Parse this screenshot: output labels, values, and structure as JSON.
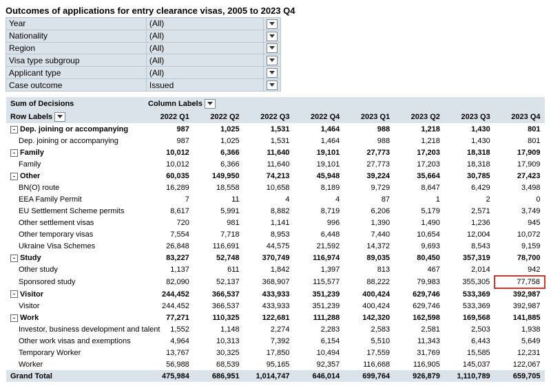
{
  "title": "Outcomes of applications for entry clearance visas, 2005 to 2023 Q4",
  "filters": [
    {
      "label": "Year",
      "value": "(All)"
    },
    {
      "label": "Nationality",
      "value": "(All)"
    },
    {
      "label": "Region",
      "value": "(All)"
    },
    {
      "label": "Visa type subgroup",
      "value": "(All)"
    },
    {
      "label": "Applicant type",
      "value": "(All)"
    },
    {
      "label": "Case outcome",
      "value": "Issued"
    }
  ],
  "sumLabel": "Sum of Decisions",
  "colLabel": "Column Labels",
  "rowLabel": "Row Labels",
  "columns": [
    "2022 Q1",
    "2022 Q2",
    "2022 Q3",
    "2022 Q4",
    "2023 Q1",
    "2023 Q2",
    "2023 Q3",
    "2023 Q4"
  ],
  "rows": [
    {
      "label": "Dep. joining or accompanying",
      "bold": true,
      "expand": true,
      "v": [
        "987",
        "1,025",
        "1,531",
        "1,464",
        "988",
        "1,218",
        "1,430",
        "801"
      ]
    },
    {
      "label": "Dep. joining or accompanying",
      "indent": true,
      "v": [
        "987",
        "1,025",
        "1,531",
        "1,464",
        "988",
        "1,218",
        "1,430",
        "801"
      ]
    },
    {
      "label": "Family",
      "bold": true,
      "expand": true,
      "v": [
        "10,012",
        "6,366",
        "11,640",
        "19,101",
        "27,773",
        "17,203",
        "18,318",
        "17,909"
      ]
    },
    {
      "label": "Family",
      "indent": true,
      "v": [
        "10,012",
        "6,366",
        "11,640",
        "19,101",
        "27,773",
        "17,203",
        "18,318",
        "17,909"
      ]
    },
    {
      "label": "Other",
      "bold": true,
      "expand": true,
      "v": [
        "60,035",
        "149,950",
        "74,213",
        "45,948",
        "39,224",
        "35,664",
        "30,785",
        "27,423"
      ]
    },
    {
      "label": "BN(O) route",
      "indent": true,
      "v": [
        "16,289",
        "18,558",
        "10,658",
        "8,189",
        "9,729",
        "8,647",
        "6,429",
        "3,498"
      ]
    },
    {
      "label": "EEA Family Permit",
      "indent": true,
      "v": [
        "7",
        "11",
        "4",
        "4",
        "87",
        "1",
        "2",
        "0"
      ]
    },
    {
      "label": "EU Settlement Scheme permits",
      "indent": true,
      "v": [
        "8,617",
        "5,991",
        "8,882",
        "8,719",
        "6,206",
        "5,179",
        "2,571",
        "3,749"
      ]
    },
    {
      "label": "Other settlement visas",
      "indent": true,
      "v": [
        "720",
        "981",
        "1,141",
        "996",
        "1,390",
        "1,490",
        "1,236",
        "945"
      ]
    },
    {
      "label": "Other temporary visas",
      "indent": true,
      "v": [
        "7,554",
        "7,718",
        "8,953",
        "6,448",
        "7,440",
        "10,654",
        "12,004",
        "10,072"
      ]
    },
    {
      "label": "Ukraine Visa Schemes",
      "indent": true,
      "v": [
        "26,848",
        "116,691",
        "44,575",
        "21,592",
        "14,372",
        "9,693",
        "8,543",
        "9,159"
      ]
    },
    {
      "label": "Study",
      "bold": true,
      "expand": true,
      "v": [
        "83,227",
        "52,748",
        "370,749",
        "116,974",
        "89,035",
        "80,450",
        "357,319",
        "78,700"
      ]
    },
    {
      "label": "Other study",
      "indent": true,
      "v": [
        "1,137",
        "611",
        "1,842",
        "1,397",
        "813",
        "467",
        "2,014",
        "942"
      ]
    },
    {
      "label": "Sponsored study",
      "indent": true,
      "v": [
        "82,090",
        "52,137",
        "368,907",
        "115,577",
        "88,222",
        "79,983",
        "355,305",
        "77,758"
      ],
      "hl": 7
    },
    {
      "label": "Visitor",
      "bold": true,
      "expand": true,
      "v": [
        "244,452",
        "366,537",
        "433,933",
        "351,239",
        "400,424",
        "629,746",
        "533,369",
        "392,987"
      ]
    },
    {
      "label": "Visitor",
      "indent": true,
      "v": [
        "244,452",
        "366,537",
        "433,933",
        "351,239",
        "400,424",
        "629,746",
        "533,369",
        "392,987"
      ]
    },
    {
      "label": "Work",
      "bold": true,
      "expand": true,
      "v": [
        "77,271",
        "110,325",
        "122,681",
        "111,288",
        "142,320",
        "162,598",
        "169,568",
        "141,885"
      ]
    },
    {
      "label": "Investor, business development and talent",
      "indent": true,
      "v": [
        "1,552",
        "1,148",
        "2,274",
        "2,283",
        "2,583",
        "2,581",
        "2,503",
        "1,938"
      ]
    },
    {
      "label": "Other work visas and exemptions",
      "indent": true,
      "v": [
        "4,964",
        "10,313",
        "7,392",
        "6,154",
        "5,510",
        "11,343",
        "6,443",
        "5,649"
      ]
    },
    {
      "label": "Temporary Worker",
      "indent": true,
      "v": [
        "13,767",
        "30,325",
        "17,850",
        "10,494",
        "17,559",
        "31,769",
        "15,585",
        "12,231"
      ]
    },
    {
      "label": "Worker",
      "indent": true,
      "v": [
        "56,988",
        "68,539",
        "95,165",
        "92,357",
        "116,668",
        "116,905",
        "145,037",
        "122,067"
      ]
    }
  ],
  "grand": {
    "label": "Grand Total",
    "v": [
      "475,984",
      "686,951",
      "1,014,747",
      "646,014",
      "699,764",
      "926,879",
      "1,110,789",
      "659,705"
    ]
  },
  "styling": {
    "headerBg": "#dbe3ea",
    "highlightBorder": "#d8342a",
    "font": "Arial",
    "baseFontSize": 11,
    "titleFontSize": 13
  }
}
